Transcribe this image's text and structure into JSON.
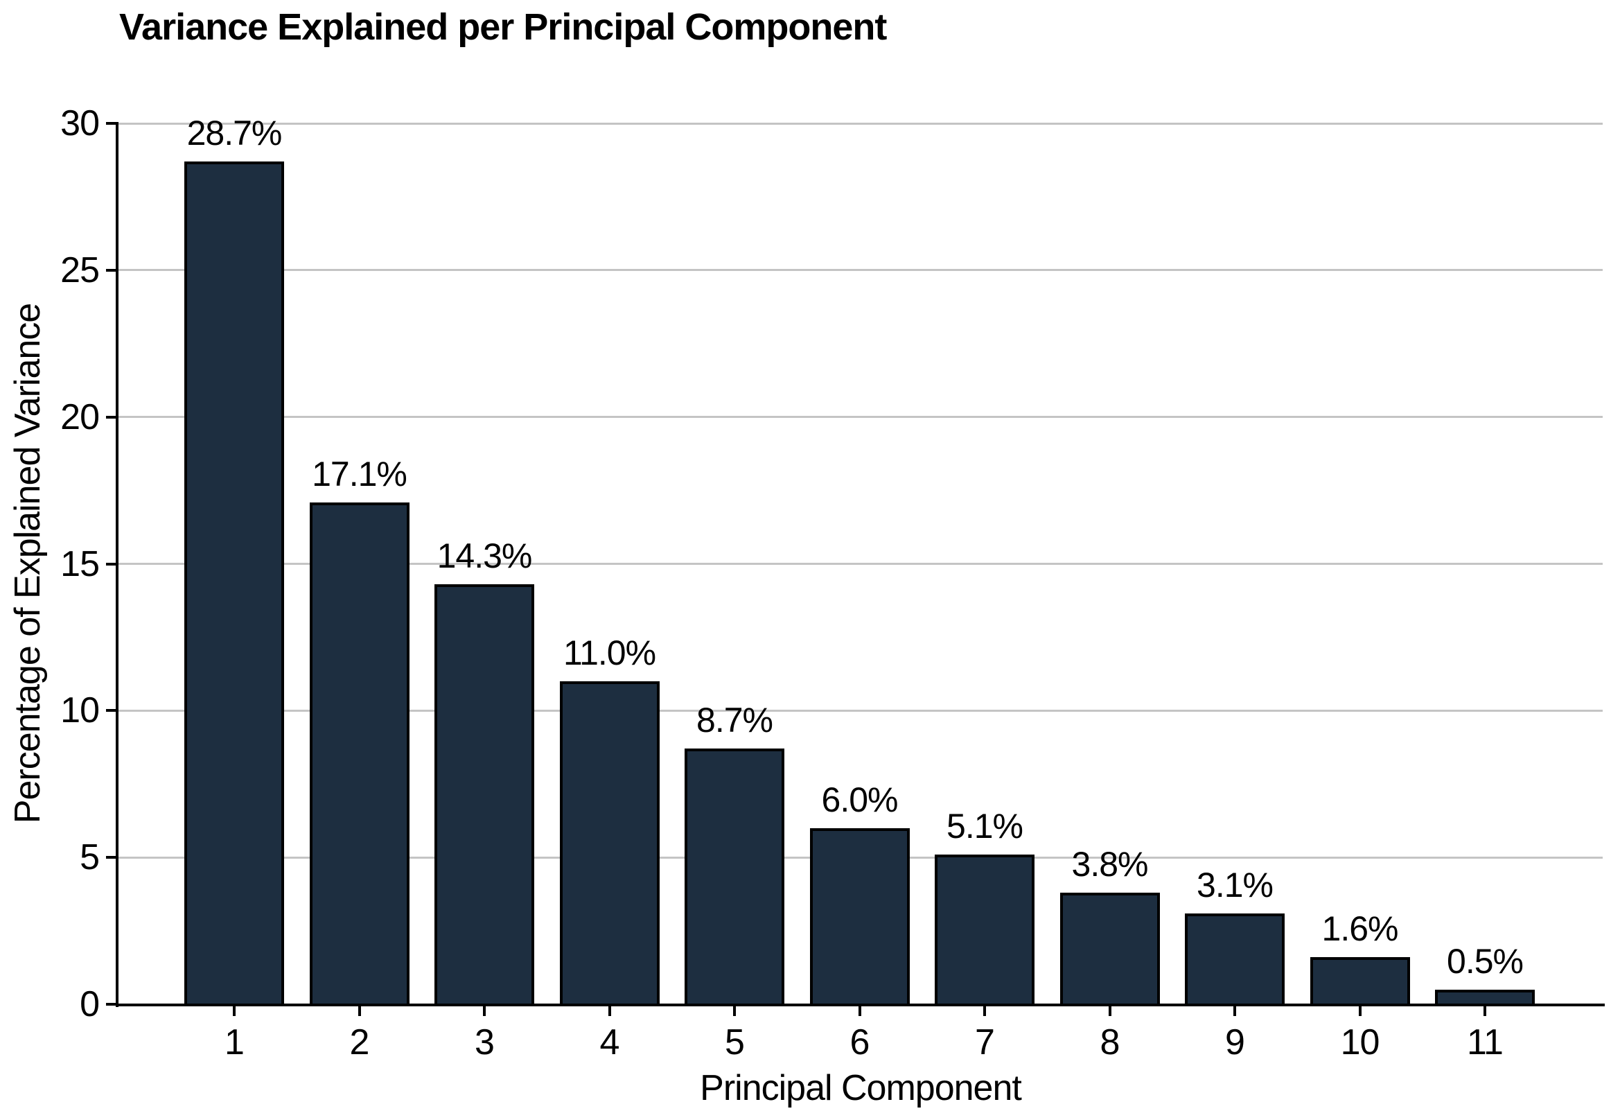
{
  "chart_data": {
    "type": "bar",
    "title": "Variance Explained per Principal Component",
    "xlabel": "Principal Component",
    "ylabel": "Percentage of Explained Variance",
    "categories": [
      "1",
      "2",
      "3",
      "4",
      "5",
      "6",
      "7",
      "8",
      "9",
      "10",
      "11"
    ],
    "values": [
      28.7,
      17.1,
      14.3,
      11.0,
      8.7,
      6.0,
      5.1,
      3.8,
      3.1,
      1.6,
      0.5
    ],
    "bar_labels": [
      "28.7%",
      "17.1%",
      "14.3%",
      "11.0%",
      "8.7%",
      "6.0%",
      "5.1%",
      "3.8%",
      "3.1%",
      "1.6%",
      "0.5%"
    ],
    "ylim": [
      0,
      30
    ],
    "yticks": [
      0,
      5,
      10,
      15,
      20,
      25,
      30
    ],
    "grid": "horizontal",
    "legend": "none",
    "colors": {
      "bar_fill": "#1d2e40",
      "bar_edge": "#000000",
      "gridline": "#c4c4c4",
      "axis": "#000000",
      "text": "#000000",
      "background": "#ffffff"
    }
  }
}
